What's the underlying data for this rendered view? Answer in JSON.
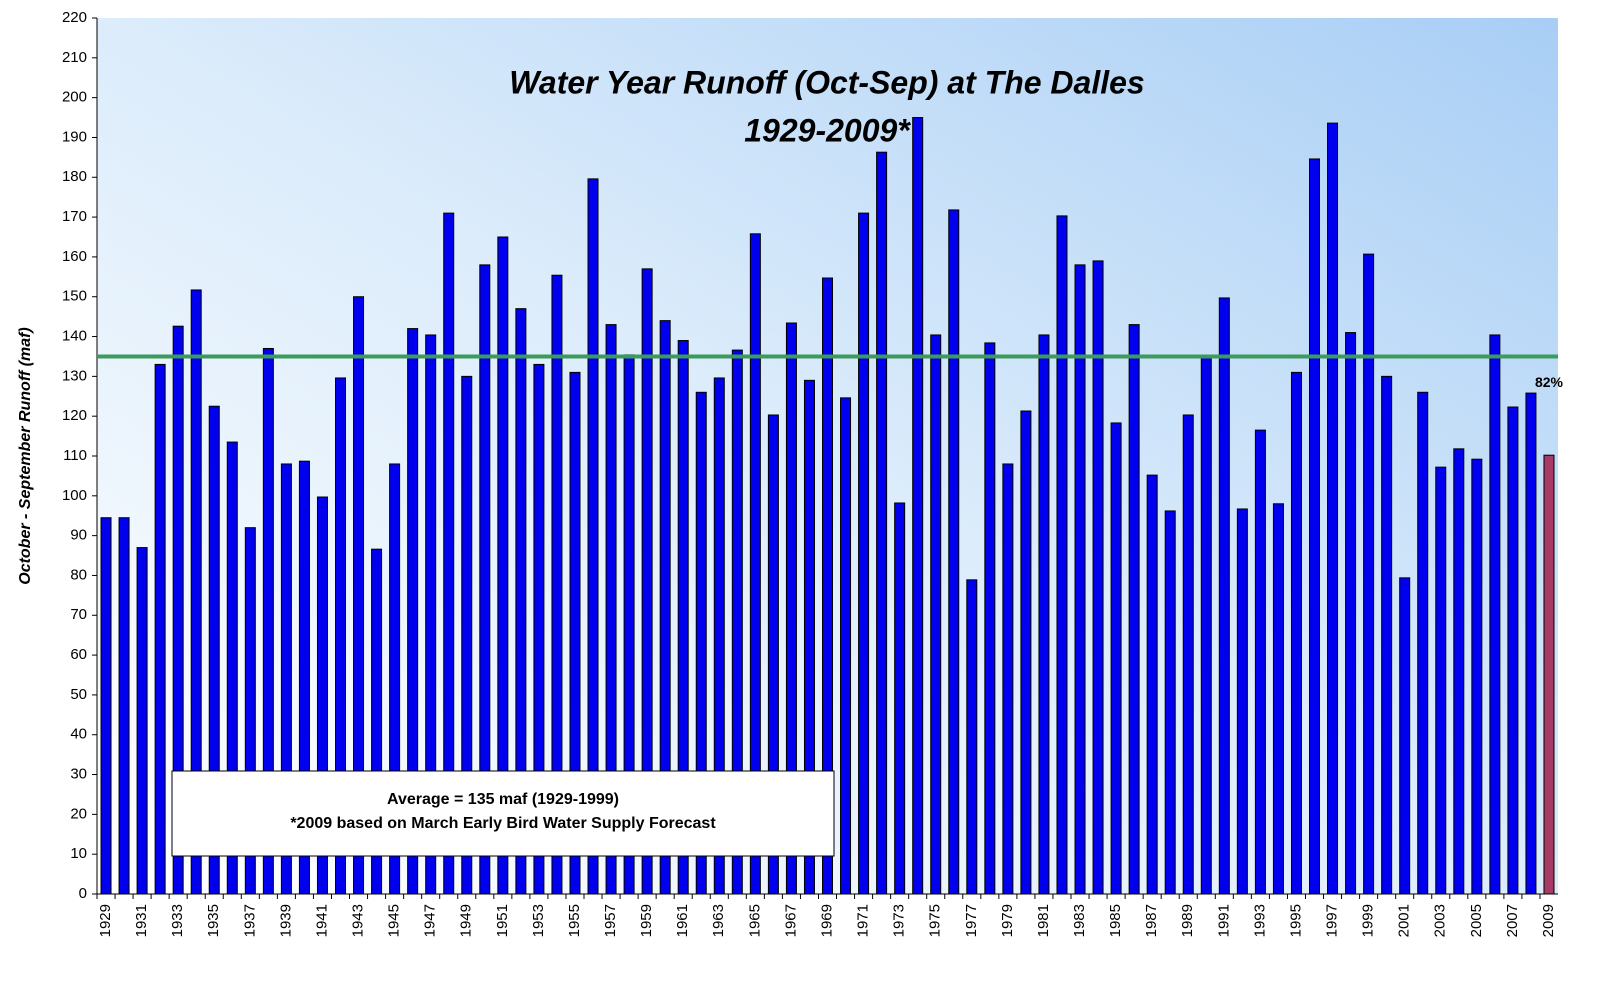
{
  "chart_data": {
    "type": "bar",
    "title": "Water Year Runoff (Oct-Sep) at The Dalles",
    "subtitle": "1929-2009*",
    "y_label": "October - September Runoff (maf)",
    "categories": [
      "1929",
      null,
      "1931",
      null,
      "1933",
      null,
      "1935",
      null,
      "1937",
      null,
      "1939",
      null,
      "1941",
      null,
      "1943",
      null,
      "1945",
      null,
      "1947",
      null,
      "1949",
      null,
      "1951",
      null,
      "1953",
      null,
      "1955",
      null,
      "1957",
      null,
      "1959",
      null,
      "1961",
      null,
      "1963",
      null,
      "1965",
      null,
      "1967",
      null,
      "1969",
      null,
      "1971",
      null,
      "1973",
      null,
      "1975",
      null,
      "1977",
      null,
      "1979",
      null,
      "1981",
      null,
      "1983",
      null,
      "1985",
      null,
      "1987",
      null,
      "1989",
      null,
      "1991",
      null,
      "1993",
      null,
      "1995",
      null,
      "1997",
      null,
      "1999",
      null,
      "2001",
      null,
      "2003",
      null,
      "2005",
      null,
      "2007",
      null,
      "2009"
    ],
    "values": [
      94.5,
      94.5,
      87,
      133,
      142.6,
      151.7,
      122.5,
      113.5,
      92,
      137,
      108,
      108.7,
      99.7,
      129.6,
      150,
      86.6,
      108,
      142,
      140.4,
      171,
      130,
      158,
      165,
      147,
      133,
      155.4,
      131,
      179.6,
      143,
      135.4,
      157,
      144,
      139,
      126,
      129.6,
      136.6,
      165.8,
      120.3,
      143.4,
      129,
      154.7,
      124.6,
      171,
      186.3,
      98.2,
      195,
      140.4,
      171.8,
      78.9,
      138.4,
      108,
      121.3,
      140.4,
      170.3,
      158,
      159,
      118.3,
      143,
      105.2,
      96.2,
      120.3,
      135.1,
      149.7,
      96.7,
      116.5,
      98,
      131,
      184.6,
      193.6,
      141,
      160.7,
      130,
      79.4,
      126,
      107.2,
      111.8,
      109.2,
      140.4,
      122.3,
      125.8,
      110.2
    ],
    "color": "#0000ee",
    "highlight": {
      "x": "2009",
      "color": "#a83a66",
      "label": "82%"
    },
    "reference_line": {
      "value": 135,
      "color": "#3c9a5c"
    },
    "annotation": [
      "Average = 135 maf (1929-1999)",
      "*2009 based on March Early Bird Water Supply Forecast"
    ],
    "ylim": [
      0,
      220
    ],
    "yticks": [
      0,
      10,
      20,
      30,
      40,
      50,
      60,
      70,
      80,
      90,
      100,
      110,
      120,
      130,
      140,
      150,
      160,
      170,
      180,
      190,
      200,
      210,
      220
    ]
  }
}
